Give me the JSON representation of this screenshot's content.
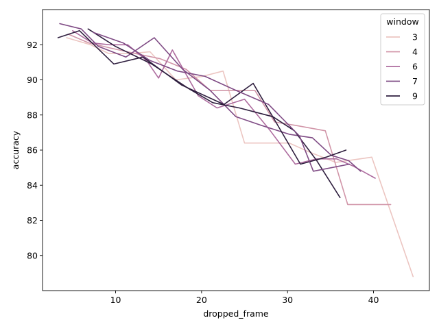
{
  "chart_data": {
    "type": "line",
    "xlabel": "dropped_frame",
    "ylabel": "accuracy",
    "xlim": [
      1.5,
      46.5
    ],
    "ylim": [
      78.0,
      94.0
    ],
    "xticks": [
      10,
      20,
      30,
      40
    ],
    "yticks": [
      80,
      82,
      84,
      86,
      88,
      90,
      92
    ],
    "grid": false,
    "legend": {
      "title": "window",
      "placement": "top-right"
    },
    "series": [
      {
        "name": "3",
        "color": "#ecc5c1",
        "x": [
          4.3,
          7.1,
          9.2,
          11.8,
          14.0,
          17.0,
          20.1,
          22.5,
          25.0,
          27.8,
          30.2,
          32.5,
          35.6,
          39.8,
          44.6
        ],
        "y": [
          92.4,
          92.0,
          91.5,
          91.5,
          91.6,
          90.0,
          90.2,
          90.5,
          86.4,
          86.4,
          86.4,
          85.9,
          85.3,
          85.6,
          78.8
        ]
      },
      {
        "name": "4",
        "color": "#d195a8",
        "x": [
          4.5,
          6.9,
          9.5,
          12.3,
          15.2,
          18.2,
          21.0,
          24.3,
          26.2,
          28.5,
          31.0,
          34.4,
          37.0,
          39.8,
          42.0
        ],
        "y": [
          92.6,
          92.1,
          91.8,
          91.5,
          91.2,
          90.6,
          89.4,
          89.4,
          89.4,
          87.6,
          87.4,
          87.1,
          82.9,
          82.9,
          82.9
        ]
      },
      {
        "name": "6",
        "color": "#ad6b9e",
        "x": [
          5.0,
          7.3,
          9.3,
          11.4,
          13.6,
          15.0,
          16.6,
          19.6,
          21.8,
          25.0,
          28.0,
          30.9,
          33.4,
          35.7,
          37.6,
          40.2
        ],
        "y": [
          92.8,
          92.1,
          92.0,
          92.0,
          91.1,
          90.1,
          91.7,
          89.1,
          88.4,
          88.9,
          87.1,
          85.2,
          85.5,
          85.5,
          85.1,
          84.4
        ]
      },
      {
        "name": "7",
        "color": "#7e4a84",
        "x": [
          3.5,
          6.0,
          8.0,
          11.2,
          14.5,
          17.8,
          21.0,
          24.0,
          27.0,
          30.2,
          32.9,
          35.1,
          37.1,
          38.5
        ],
        "y": [
          93.2,
          92.9,
          91.9,
          91.3,
          92.4,
          90.6,
          89.4,
          87.9,
          87.4,
          86.9,
          86.7,
          85.7,
          85.4,
          84.8
        ]
      },
      {
        "name": "9",
        "color": "#2e1e3e",
        "x": [
          3.3,
          5.8,
          9.8,
          13.2,
          17.7,
          22.6,
          26.0,
          28.4,
          31.5,
          34.5,
          36.8
        ],
        "y": [
          92.4,
          92.8,
          90.9,
          91.3,
          89.7,
          88.6,
          89.8,
          87.8,
          85.2,
          85.6,
          86.0
        ]
      },
      {
        "name": "",
        "color": "#2e1e3e",
        "x": [
          6.8,
          10.0,
          14.2,
          18.5,
          21.3,
          24.4,
          28.3,
          30.8,
          33.4,
          36.1
        ],
        "y": [
          92.9,
          91.9,
          90.9,
          89.5,
          88.7,
          88.4,
          87.9,
          87.1,
          85.4,
          83.3
        ]
      },
      {
        "name": "",
        "color": "#7e4a84",
        "x": [
          7.4,
          10.9,
          14.0,
          17.2,
          20.4,
          24.0,
          27.8,
          31.4,
          33.0,
          37.2
        ],
        "y": [
          92.7,
          92.1,
          91.1,
          90.5,
          90.2,
          89.4,
          88.6,
          86.8,
          84.8,
          85.2
        ]
      }
    ]
  }
}
